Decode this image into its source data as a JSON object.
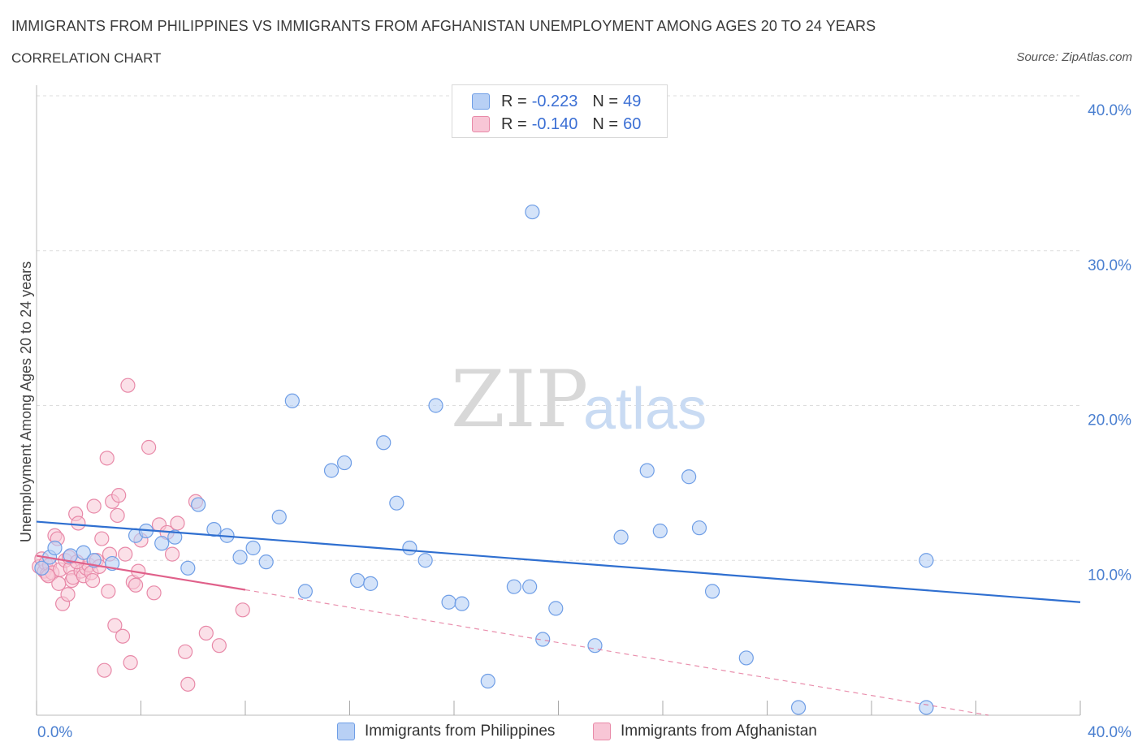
{
  "header": {
    "title": "IMMIGRANTS FROM PHILIPPINES VS IMMIGRANTS FROM AFGHANISTAN UNEMPLOYMENT AMONG AGES 20 TO 24 YEARS",
    "subtitle": "CORRELATION CHART",
    "source": "Source: ZipAtlas.com"
  },
  "legend": {
    "series1": {
      "r_label": "R = ",
      "r_value": "-0.223",
      "n_label": "N = ",
      "n_value": "49"
    },
    "series2": {
      "r_label": "R = ",
      "r_value": "-0.140",
      "n_label": "N = ",
      "n_value": "60"
    }
  },
  "watermark": {
    "zip": "ZIP",
    "atlas": "atlas"
  },
  "colors": {
    "blue_fill": "#b8d0f5",
    "blue_stroke": "#6f9ee6",
    "blue_line": "#2f6fd0",
    "pink_fill": "#f8c6d6",
    "pink_stroke": "#e889a8",
    "pink_line": "#e0608a",
    "grid": "#dddddd"
  },
  "chart_data": {
    "type": "scatter",
    "title": "IMMIGRANTS FROM PHILIPPINES VS IMMIGRANTS FROM AFGHANISTAN UNEMPLOYMENT AMONG AGES 20 TO 24 YEARS",
    "xlabel": "",
    "ylabel": "Unemployment Among Ages 20 to 24 years",
    "xlim": [
      0,
      40
    ],
    "ylim": [
      0,
      40
    ],
    "x_tick_labels": [
      "0.0%",
      "40.0%"
    ],
    "y_ticks": [
      10,
      20,
      30,
      40
    ],
    "y_tick_labels": [
      "10.0%",
      "20.0%",
      "30.0%",
      "40.0%"
    ],
    "grid": true,
    "legend_position": "bottom",
    "series": [
      {
        "name": "Immigrants from Philippines",
        "color": "#6f9ee6",
        "trend": {
          "x": [
            0,
            40
          ],
          "y": [
            12.5,
            7.3
          ]
        },
        "points": [
          [
            0.2,
            9.5
          ],
          [
            0.5,
            10.2
          ],
          [
            0.7,
            10.8
          ],
          [
            1.3,
            10.3
          ],
          [
            1.8,
            10.5
          ],
          [
            2.2,
            10.0
          ],
          [
            2.9,
            9.8
          ],
          [
            3.8,
            11.6
          ],
          [
            4.2,
            11.9
          ],
          [
            4.8,
            11.1
          ],
          [
            5.3,
            11.5
          ],
          [
            5.8,
            9.5
          ],
          [
            6.2,
            13.6
          ],
          [
            6.8,
            12.0
          ],
          [
            7.3,
            11.6
          ],
          [
            7.8,
            10.2
          ],
          [
            8.3,
            10.8
          ],
          [
            8.8,
            9.9
          ],
          [
            9.3,
            12.8
          ],
          [
            9.8,
            20.3
          ],
          [
            10.3,
            8.0
          ],
          [
            11.3,
            15.8
          ],
          [
            11.8,
            16.3
          ],
          [
            12.3,
            8.7
          ],
          [
            12.8,
            8.5
          ],
          [
            13.3,
            17.6
          ],
          [
            13.8,
            13.7
          ],
          [
            14.3,
            10.8
          ],
          [
            14.9,
            10.0
          ],
          [
            15.3,
            20.0
          ],
          [
            15.8,
            7.3
          ],
          [
            16.3,
            7.2
          ],
          [
            17.3,
            2.2
          ],
          [
            18.3,
            8.3
          ],
          [
            18.9,
            8.3
          ],
          [
            19.0,
            32.5
          ],
          [
            19.4,
            4.9
          ],
          [
            19.9,
            6.9
          ],
          [
            21.4,
            4.5
          ],
          [
            22.4,
            11.5
          ],
          [
            23.4,
            15.8
          ],
          [
            23.9,
            11.9
          ],
          [
            25.0,
            15.4
          ],
          [
            25.4,
            12.1
          ],
          [
            25.9,
            8.0
          ],
          [
            27.2,
            3.7
          ],
          [
            29.2,
            0.5
          ],
          [
            34.1,
            10.0
          ],
          [
            34.1,
            0.5
          ]
        ]
      },
      {
        "name": "Immigrants from Afghanistan",
        "color": "#e889a8",
        "trend": {
          "x": [
            0,
            8
          ],
          "y": [
            10.3,
            8.1
          ]
        },
        "trend_extension": {
          "x": [
            8,
            40
          ],
          "y": [
            8.1,
            -1.0
          ]
        },
        "points": [
          [
            0.1,
            9.6
          ],
          [
            0.2,
            10.1
          ],
          [
            0.3,
            9.3
          ],
          [
            0.35,
            9.8
          ],
          [
            0.4,
            9.1
          ],
          [
            0.5,
            9.7
          ],
          [
            0.6,
            9.2
          ],
          [
            0.7,
            11.6
          ],
          [
            0.8,
            11.4
          ],
          [
            0.9,
            9.4
          ],
          [
            1.0,
            7.2
          ],
          [
            1.1,
            10.0
          ],
          [
            1.2,
            7.8
          ],
          [
            1.3,
            9.5
          ],
          [
            1.35,
            8.7
          ],
          [
            1.4,
            8.9
          ],
          [
            1.5,
            13.0
          ],
          [
            1.6,
            12.4
          ],
          [
            1.7,
            9.3
          ],
          [
            1.8,
            9.0
          ],
          [
            1.9,
            9.5
          ],
          [
            2.0,
            9.7
          ],
          [
            2.1,
            9.2
          ],
          [
            2.2,
            13.5
          ],
          [
            2.3,
            10.0
          ],
          [
            2.4,
            9.6
          ],
          [
            2.5,
            11.4
          ],
          [
            2.6,
            2.9
          ],
          [
            2.7,
            16.6
          ],
          [
            2.75,
            8.0
          ],
          [
            2.8,
            10.4
          ],
          [
            2.9,
            13.8
          ],
          [
            3.0,
            5.8
          ],
          [
            3.1,
            12.9
          ],
          [
            3.15,
            14.2
          ],
          [
            3.3,
            5.1
          ],
          [
            3.4,
            10.4
          ],
          [
            3.5,
            21.3
          ],
          [
            3.6,
            3.4
          ],
          [
            3.7,
            8.6
          ],
          [
            3.8,
            8.4
          ],
          [
            3.9,
            9.3
          ],
          [
            4.0,
            11.3
          ],
          [
            4.3,
            17.3
          ],
          [
            4.5,
            7.9
          ],
          [
            4.7,
            12.3
          ],
          [
            5.0,
            11.8
          ],
          [
            5.2,
            10.4
          ],
          [
            5.4,
            12.4
          ],
          [
            5.7,
            4.1
          ],
          [
            5.8,
            2.0
          ],
          [
            6.1,
            13.8
          ],
          [
            6.5,
            5.3
          ],
          [
            7.0,
            4.5
          ],
          [
            7.9,
            6.8
          ],
          [
            1.25,
            10.2
          ],
          [
            0.85,
            8.5
          ],
          [
            2.15,
            8.7
          ],
          [
            1.55,
            9.9
          ],
          [
            0.45,
            9.0
          ]
        ]
      }
    ]
  }
}
